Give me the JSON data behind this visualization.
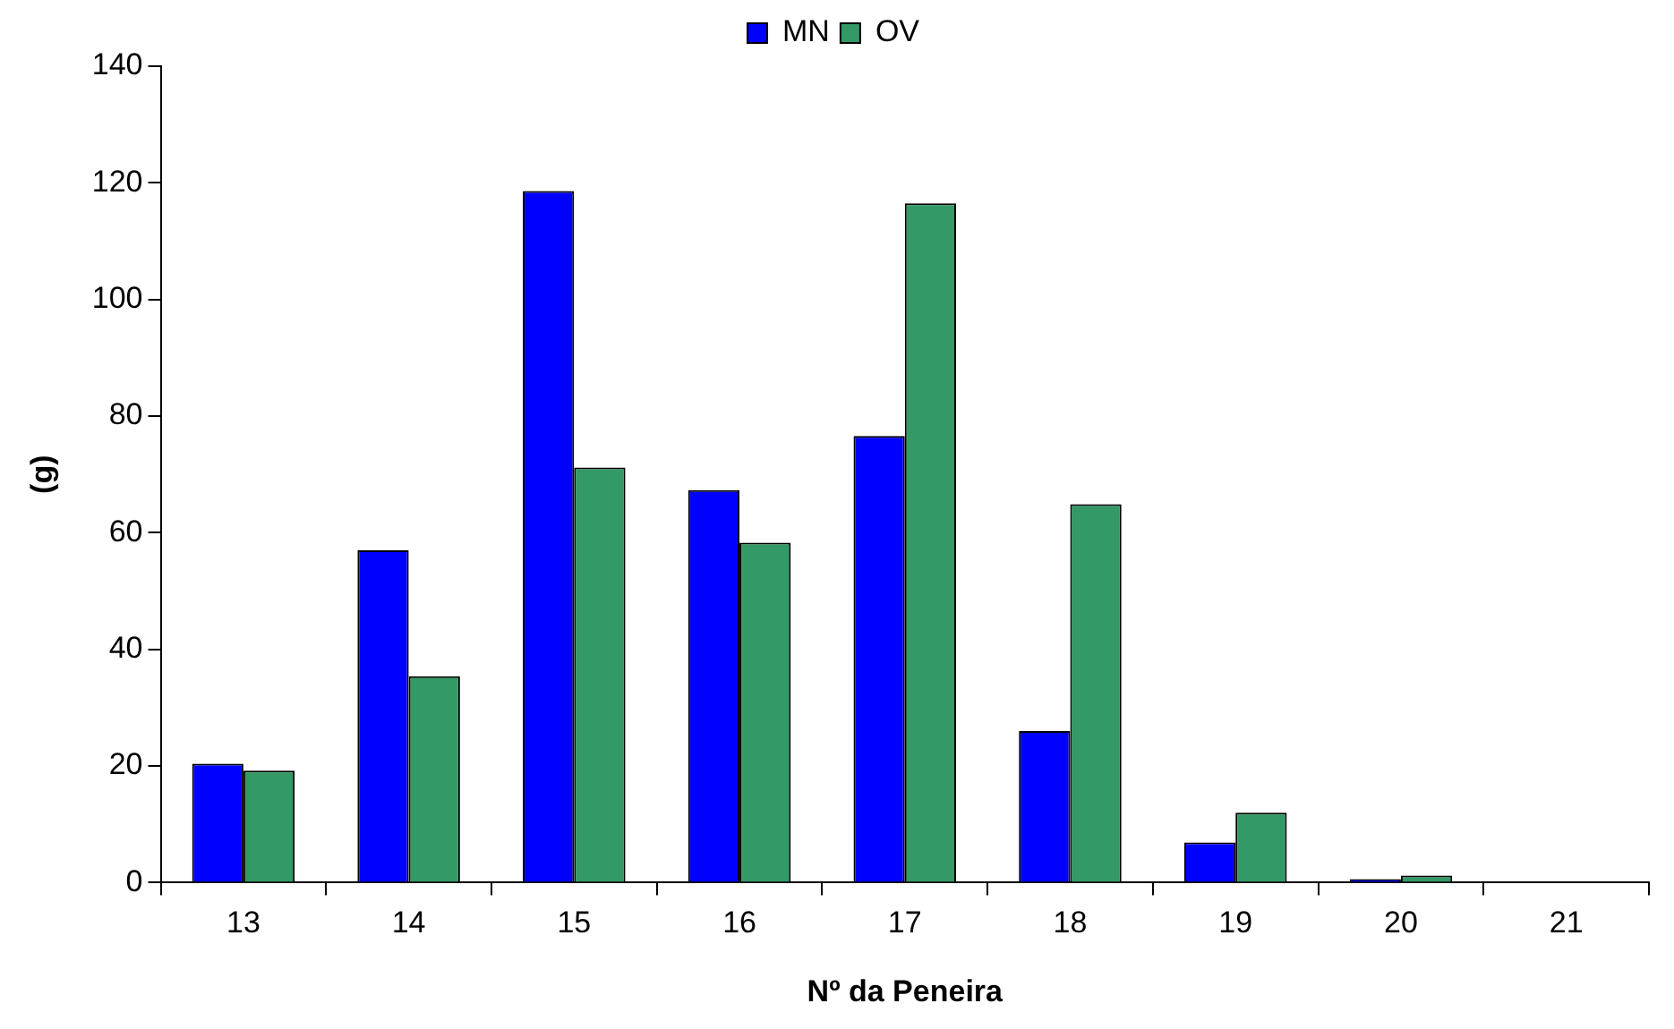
{
  "chart_data": {
    "type": "bar",
    "xlabel": "Nº da Peneira",
    "ylabel": "(g)",
    "categories": [
      "13",
      "14",
      "15",
      "16",
      "17",
      "18",
      "19",
      "20",
      "21"
    ],
    "series": [
      {
        "name": "MN",
        "color": "#0000ff",
        "values": [
          20.4,
          57,
          118.6,
          67.3,
          76.6,
          26,
          6.9,
          0.6,
          0
        ]
      },
      {
        "name": "OV",
        "color": "#339966",
        "values": [
          19.2,
          35.4,
          71.2,
          58.3,
          116.5,
          64.9,
          12,
          1.2,
          0
        ]
      }
    ],
    "ylim": [
      0,
      140
    ],
    "yticks": [
      0,
      20,
      40,
      60,
      80,
      100,
      120,
      140
    ],
    "grid": false,
    "legend": "top"
  }
}
